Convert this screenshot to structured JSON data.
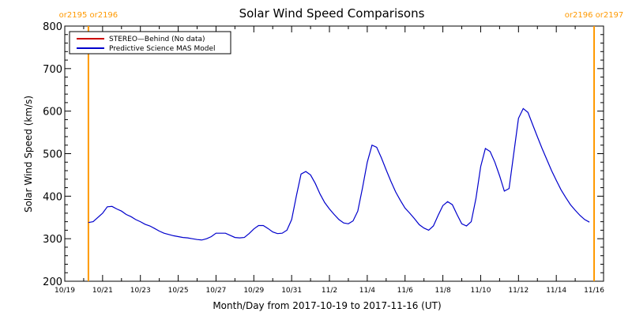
{
  "chart_data": {
    "type": "line",
    "title": "Solar Wind Speed Comparisons",
    "xlabel": "Month/Day from 2017-10-19 to 2017-11-16 (UT)",
    "ylabel": "Solar Wind Speed (km/s)",
    "ylim": [
      200,
      800
    ],
    "yticks": [
      200,
      300,
      400,
      500,
      600,
      700,
      800
    ],
    "xlim": [
      "2017-10-19",
      "2017-11-16 12:00"
    ],
    "xticks": [
      {
        "x": "2017-10-19",
        "label": "10/19"
      },
      {
        "x": "2017-10-21",
        "label": "10/21"
      },
      {
        "x": "2017-10-23",
        "label": "10/23"
      },
      {
        "x": "2017-10-25",
        "label": "10/25"
      },
      {
        "x": "2017-10-27",
        "label": "10/27"
      },
      {
        "x": "2017-10-29",
        "label": "10/29"
      },
      {
        "x": "2017-10-31",
        "label": "10/31"
      },
      {
        "x": "2017-11-02",
        "label": "11/2"
      },
      {
        "x": "2017-11-04",
        "label": "11/4"
      },
      {
        "x": "2017-11-06",
        "label": "11/6"
      },
      {
        "x": "2017-11-08",
        "label": "11/8"
      },
      {
        "x": "2017-11-10",
        "label": "11/10"
      },
      {
        "x": "2017-11-12",
        "label": "11/12"
      },
      {
        "x": "2017-11-14",
        "label": "11/14"
      },
      {
        "x": "2017-11-16",
        "label": "11/16"
      }
    ],
    "legend_position": "top-left",
    "grid": false,
    "series": [
      {
        "name": "STEREO—Behind (No data)",
        "color": "#cc0000",
        "points": []
      },
      {
        "name": "Predictive Science MAS Model",
        "color": "#0000cc",
        "points": [
          [
            "2017-10-20 06:00",
            338
          ],
          [
            "2017-10-20 12:00",
            340
          ],
          [
            "2017-10-21 00:00",
            360
          ],
          [
            "2017-10-21 06:00",
            375
          ],
          [
            "2017-10-21 12:00",
            376
          ],
          [
            "2017-10-21 18:00",
            370
          ],
          [
            "2017-10-22 00:00",
            365
          ],
          [
            "2017-10-22 06:00",
            357
          ],
          [
            "2017-10-22 12:00",
            352
          ],
          [
            "2017-10-22 18:00",
            345
          ],
          [
            "2017-10-23 00:00",
            340
          ],
          [
            "2017-10-23 06:00",
            334
          ],
          [
            "2017-10-23 12:00",
            330
          ],
          [
            "2017-10-23 18:00",
            324
          ],
          [
            "2017-10-24 00:00",
            318
          ],
          [
            "2017-10-24 06:00",
            313
          ],
          [
            "2017-10-24 12:00",
            310
          ],
          [
            "2017-10-24 18:00",
            307
          ],
          [
            "2017-10-25 00:00",
            305
          ],
          [
            "2017-10-25 06:00",
            303
          ],
          [
            "2017-10-25 12:00",
            302
          ],
          [
            "2017-10-25 18:00",
            300
          ],
          [
            "2017-10-26 00:00",
            298
          ],
          [
            "2017-10-26 06:00",
            297
          ],
          [
            "2017-10-26 12:00",
            300
          ],
          [
            "2017-10-26 18:00",
            305
          ],
          [
            "2017-10-27 00:00",
            313
          ],
          [
            "2017-10-27 06:00",
            313
          ],
          [
            "2017-10-27 12:00",
            313
          ],
          [
            "2017-10-27 18:00",
            308
          ],
          [
            "2017-10-28 00:00",
            303
          ],
          [
            "2017-10-28 06:00",
            302
          ],
          [
            "2017-10-28 12:00",
            303
          ],
          [
            "2017-10-28 18:00",
            312
          ],
          [
            "2017-10-29 00:00",
            323
          ],
          [
            "2017-10-29 06:00",
            331
          ],
          [
            "2017-10-29 12:00",
            331
          ],
          [
            "2017-10-29 18:00",
            324
          ],
          [
            "2017-10-30 00:00",
            316
          ],
          [
            "2017-10-30 06:00",
            312
          ],
          [
            "2017-10-30 12:00",
            313
          ],
          [
            "2017-10-30 18:00",
            320
          ],
          [
            "2017-10-31 00:00",
            345
          ],
          [
            "2017-10-31 06:00",
            400
          ],
          [
            "2017-10-31 12:00",
            452
          ],
          [
            "2017-10-31 18:00",
            458
          ],
          [
            "2017-11-01 00:00",
            450
          ],
          [
            "2017-11-01 06:00",
            430
          ],
          [
            "2017-11-01 12:00",
            405
          ],
          [
            "2017-11-01 18:00",
            385
          ],
          [
            "2017-11-02 00:00",
            370
          ],
          [
            "2017-11-02 06:00",
            357
          ],
          [
            "2017-11-02 12:00",
            345
          ],
          [
            "2017-11-02 18:00",
            337
          ],
          [
            "2017-11-03 00:00",
            335
          ],
          [
            "2017-11-03 06:00",
            342
          ],
          [
            "2017-11-03 12:00",
            365
          ],
          [
            "2017-11-03 18:00",
            420
          ],
          [
            "2017-11-04 00:00",
            480
          ],
          [
            "2017-11-04 06:00",
            520
          ],
          [
            "2017-11-04 12:00",
            515
          ],
          [
            "2017-11-04 18:00",
            490
          ],
          [
            "2017-11-05 00:00",
            462
          ],
          [
            "2017-11-05 06:00",
            435
          ],
          [
            "2017-11-05 12:00",
            410
          ],
          [
            "2017-11-05 18:00",
            390
          ],
          [
            "2017-11-06 00:00",
            372
          ],
          [
            "2017-11-06 06:00",
            360
          ],
          [
            "2017-11-06 12:00",
            347
          ],
          [
            "2017-11-06 18:00",
            333
          ],
          [
            "2017-11-07 00:00",
            325
          ],
          [
            "2017-11-07 06:00",
            320
          ],
          [
            "2017-11-07 12:00",
            330
          ],
          [
            "2017-11-07 18:00",
            355
          ],
          [
            "2017-11-08 00:00",
            378
          ],
          [
            "2017-11-08 06:00",
            387
          ],
          [
            "2017-11-08 12:00",
            380
          ],
          [
            "2017-11-08 18:00",
            357
          ],
          [
            "2017-11-09 00:00",
            335
          ],
          [
            "2017-11-09 06:00",
            330
          ],
          [
            "2017-11-09 12:00",
            340
          ],
          [
            "2017-11-09 18:00",
            395
          ],
          [
            "2017-11-10 00:00",
            470
          ],
          [
            "2017-11-10 06:00",
            512
          ],
          [
            "2017-11-10 12:00",
            505
          ],
          [
            "2017-11-10 18:00",
            480
          ],
          [
            "2017-11-11 00:00",
            448
          ],
          [
            "2017-11-11 06:00",
            412
          ],
          [
            "2017-11-11 12:00",
            418
          ],
          [
            "2017-11-11 18:00",
            500
          ],
          [
            "2017-11-12 00:00",
            583
          ],
          [
            "2017-11-12 06:00",
            606
          ],
          [
            "2017-11-12 12:00",
            597
          ],
          [
            "2017-11-12 18:00",
            568
          ],
          [
            "2017-11-13 00:00",
            540
          ],
          [
            "2017-11-13 06:00",
            512
          ],
          [
            "2017-11-13 12:00",
            486
          ],
          [
            "2017-11-13 18:00",
            460
          ],
          [
            "2017-11-14 00:00",
            437
          ],
          [
            "2017-11-14 06:00",
            415
          ],
          [
            "2017-11-14 12:00",
            397
          ],
          [
            "2017-11-14 18:00",
            380
          ],
          [
            "2017-11-15 00:00",
            367
          ],
          [
            "2017-11-15 06:00",
            355
          ],
          [
            "2017-11-15 12:00",
            345
          ],
          [
            "2017-11-15 18:00",
            339
          ]
        ]
      }
    ],
    "annotations": [
      {
        "x": "2017-10-20 06:00",
        "label": "or2195 or2196",
        "color": "#ff9900",
        "type": "vertical-line"
      },
      {
        "x": "2017-11-16 00:00",
        "label": "or2196 or2197",
        "color": "#ff9900",
        "type": "vertical-line"
      }
    ]
  }
}
